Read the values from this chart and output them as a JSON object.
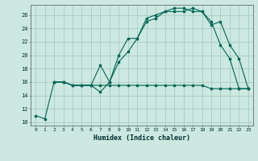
{
  "title": "",
  "xlabel": "Humidex (Indice chaleur)",
  "ylabel": "",
  "bg_color": "#cce8e0",
  "grid_color": "#a8ccc4",
  "line_color": "#006655",
  "xlim": [
    -0.5,
    23.5
  ],
  "ylim": [
    9.5,
    27.5
  ],
  "yticks": [
    10,
    12,
    14,
    16,
    18,
    20,
    22,
    24,
    26
  ],
  "xticks": [
    0,
    1,
    2,
    3,
    4,
    5,
    6,
    7,
    8,
    9,
    10,
    11,
    12,
    13,
    14,
    15,
    16,
    17,
    18,
    19,
    20,
    21,
    22,
    23
  ],
  "line1_x": [
    0,
    1,
    2,
    3,
    4,
    5,
    6,
    7,
    8,
    9,
    10,
    11,
    12,
    13,
    14,
    15,
    16,
    17,
    18,
    19,
    20,
    21,
    22,
    23
  ],
  "line1_y": [
    11.0,
    10.5,
    16.0,
    16.0,
    15.5,
    15.5,
    15.5,
    14.5,
    16.0,
    19.0,
    20.5,
    22.5,
    25.0,
    25.5,
    26.5,
    27.0,
    27.0,
    26.5,
    26.5,
    25.0,
    21.5,
    19.5,
    15.0,
    15.0
  ],
  "line2_x": [
    2,
    3,
    4,
    5,
    6,
    7,
    8,
    9,
    10,
    11,
    12,
    13,
    14,
    15,
    16,
    17,
    18,
    19,
    20,
    21,
    22,
    23
  ],
  "line2_y": [
    16.0,
    16.0,
    15.5,
    15.5,
    15.5,
    18.5,
    16.0,
    20.0,
    22.5,
    22.5,
    25.5,
    26.0,
    26.5,
    26.5,
    26.5,
    27.0,
    26.5,
    24.5,
    25.0,
    21.5,
    19.5,
    15.0
  ],
  "line3_x": [
    2,
    3,
    4,
    5,
    6,
    7,
    8,
    9,
    10,
    11,
    12,
    13,
    14,
    15,
    16,
    17,
    18,
    19,
    20,
    21,
    22,
    23
  ],
  "line3_y": [
    16.0,
    16.0,
    15.5,
    15.5,
    15.5,
    15.5,
    15.5,
    15.5,
    15.5,
    15.5,
    15.5,
    15.5,
    15.5,
    15.5,
    15.5,
    15.5,
    15.5,
    15.0,
    15.0,
    15.0,
    15.0,
    15.0
  ]
}
